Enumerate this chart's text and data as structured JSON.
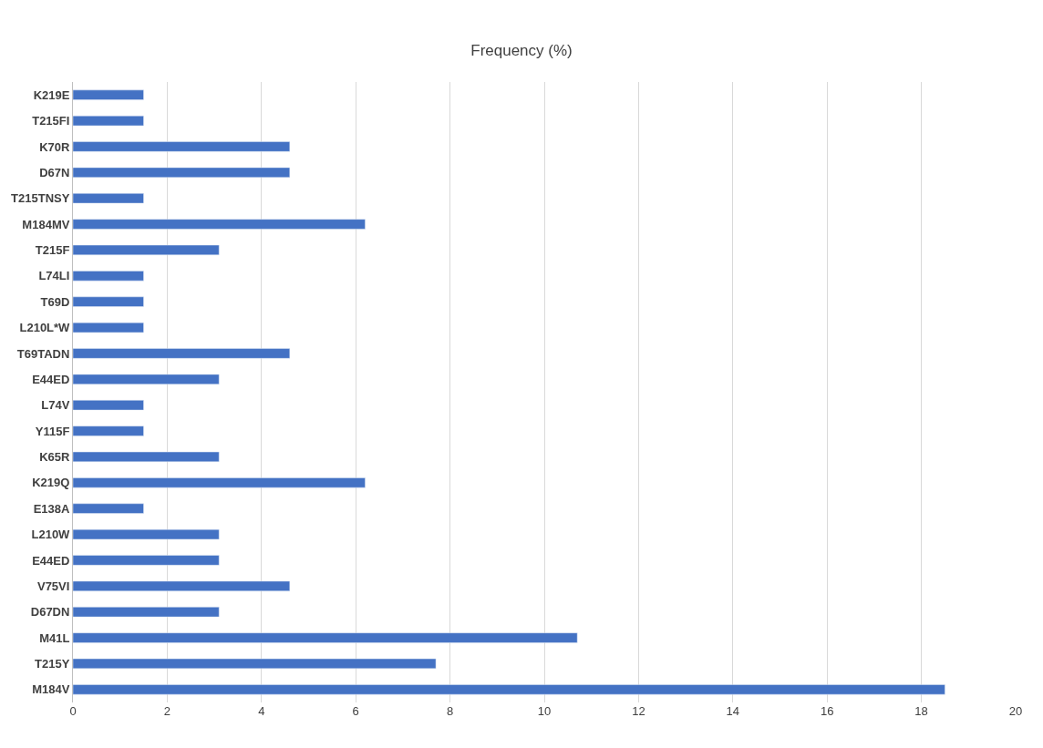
{
  "chart_data": {
    "type": "bar",
    "orientation": "horizontal",
    "title": "Frequency (%)",
    "categories": [
      "K219E",
      "T215FI",
      "K70R",
      "D67N",
      "T215TNSY",
      "M184MV",
      "T215F",
      "L74LI",
      "T69D",
      "L210L*W",
      "T69TADN",
      "E44ED",
      "L74V",
      "Y115F",
      "K65R",
      "K219Q",
      "E138A",
      "L210W",
      "E44ED",
      "V75VI",
      "D67DN",
      "M41L",
      "T215Y",
      "M184V"
    ],
    "values": [
      1.5,
      1.5,
      4.6,
      4.6,
      1.5,
      6.2,
      3.1,
      1.5,
      1.5,
      1.5,
      4.6,
      3.1,
      1.5,
      1.5,
      3.1,
      6.2,
      1.5,
      3.1,
      3.1,
      4.6,
      3.1,
      10.7,
      7.7,
      18.5
    ],
    "color": "#4472c4",
    "xlim": [
      0,
      20
    ],
    "xticks": [
      0,
      2,
      4,
      6,
      8,
      10,
      12,
      14,
      16,
      18,
      20
    ],
    "grid": "x",
    "legend": false
  }
}
